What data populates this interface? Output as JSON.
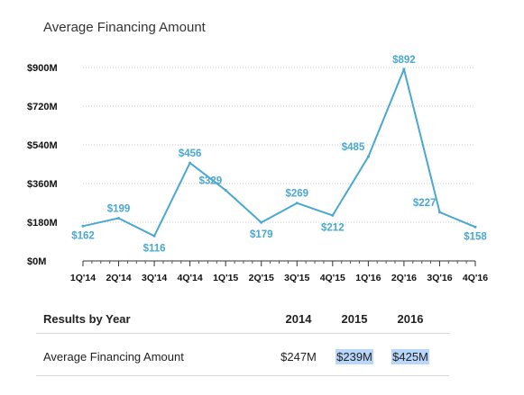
{
  "chart_data": {
    "type": "line",
    "title": "Average Financing Amount",
    "categories": [
      "1Q'14",
      "2Q'14",
      "3Q'14",
      "4Q'14",
      "1Q'15",
      "2Q'15",
      "3Q'15",
      "4Q'15",
      "1Q'16",
      "2Q'16",
      "3Q'16",
      "4Q'16"
    ],
    "series": [
      {
        "values": [
          162,
          199,
          116,
          456,
          329,
          179,
          269,
          212,
          485,
          892,
          227,
          158
        ],
        "labels": [
          "$162",
          "$199",
          "$116",
          "$456",
          "$329",
          "$179",
          "$269",
          "$212",
          "$485",
          "$892",
          "$227",
          "$158"
        ]
      }
    ],
    "y_ticks": [
      0,
      180,
      360,
      540,
      720,
      900
    ],
    "y_tick_labels": [
      "$0M",
      "$180M",
      "$360M",
      "$540M",
      "$720M",
      "$900M"
    ],
    "ylim": [
      0,
      900
    ],
    "xlabel": "",
    "ylabel": "",
    "grid": true,
    "line_color": "#4aa8d0"
  },
  "results": {
    "heading": "Results by Year",
    "years": [
      "2014",
      "2015",
      "2016"
    ],
    "row_label": "Average Financing Amount",
    "values": [
      "$247M",
      "$239M",
      "$425M"
    ]
  }
}
